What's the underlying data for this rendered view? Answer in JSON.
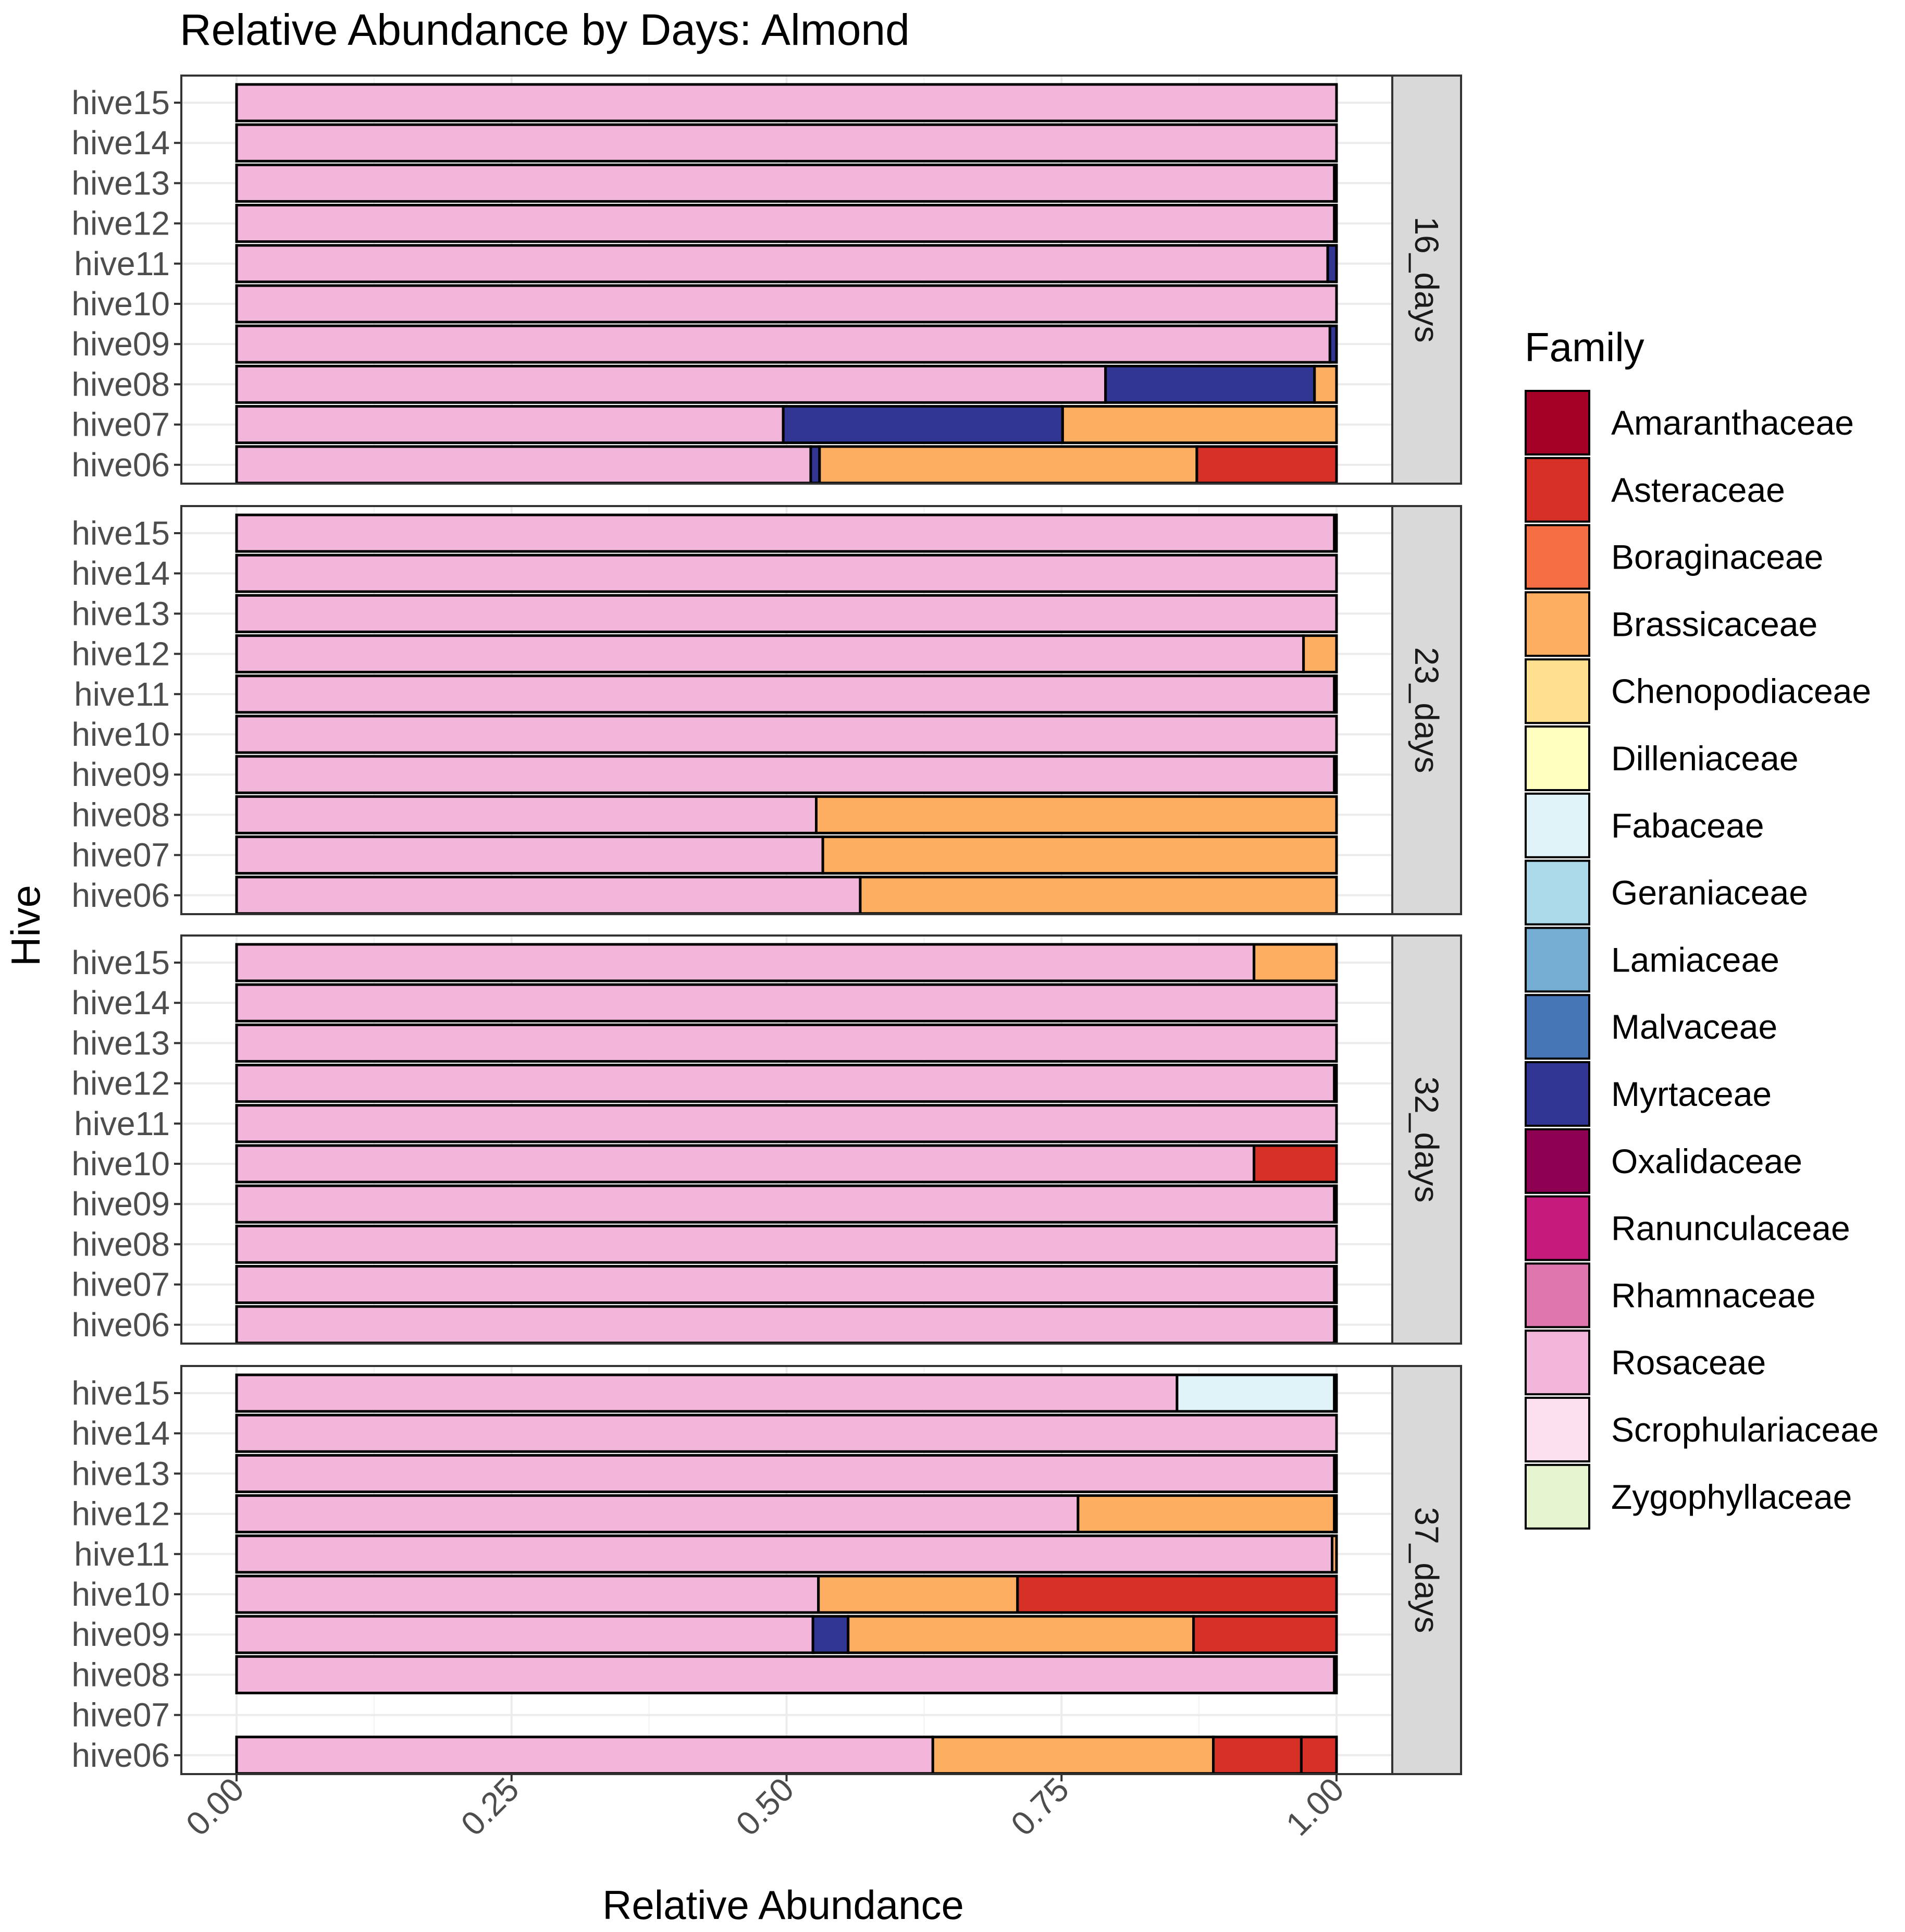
{
  "chart_data": {
    "type": "bar",
    "orientation": "horizontal",
    "stacked": true,
    "title": "Relative Abundance by Days: Almond",
    "xlabel": "Relative Abundance",
    "ylabel": "Hive",
    "xlim": [
      0,
      1
    ],
    "x_ticks": [
      "0.00",
      "0.25",
      "0.50",
      "0.75",
      "1.00"
    ],
    "x_tick_values": [
      0,
      0.25,
      0.5,
      0.75,
      1
    ],
    "hives": [
      "hive15",
      "hive14",
      "hive13",
      "hive12",
      "hive11",
      "hive10",
      "hive09",
      "hive08",
      "hive07",
      "hive06"
    ],
    "legend": {
      "title": "Family",
      "position": "right",
      "entries": [
        {
          "name": "Amaranthaceae",
          "color": "#a50026"
        },
        {
          "name": "Asteraceae",
          "color": "#d73027"
        },
        {
          "name": "Boraginaceae",
          "color": "#f46d43"
        },
        {
          "name": "Brassicaceae",
          "color": "#fdae61"
        },
        {
          "name": "Chenopodiaceae",
          "color": "#fee090"
        },
        {
          "name": "Dilleniaceae",
          "color": "#ffffbf"
        },
        {
          "name": "Fabaceae",
          "color": "#e0f3f8"
        },
        {
          "name": "Geraniaceae",
          "color": "#abd9e9"
        },
        {
          "name": "Lamiaceae",
          "color": "#74add1"
        },
        {
          "name": "Malvaceae",
          "color": "#4575b4"
        },
        {
          "name": "Myrtaceae",
          "color": "#313695"
        },
        {
          "name": "Oxalidaceae",
          "color": "#8e0152"
        },
        {
          "name": "Ranunculaceae",
          "color": "#c51b7d"
        },
        {
          "name": "Rhamnaceae",
          "color": "#de77ae"
        },
        {
          "name": "Rosaceae",
          "color": "#f1b6da"
        },
        {
          "name": "Scrophulariaceae",
          "color": "#fde0ef"
        },
        {
          "name": "Zygophyllaceae",
          "color": "#e6f5d0"
        }
      ]
    },
    "panels": [
      {
        "strip": "16_days",
        "bars": [
          {
            "hive": "hive15",
            "segments": [
              {
                "family": "Rosaceae",
                "value": 1.0
              }
            ]
          },
          {
            "hive": "hive14",
            "segments": [
              {
                "family": "Rosaceae",
                "value": 1.0
              }
            ]
          },
          {
            "hive": "hive13",
            "segments": [
              {
                "family": "Rosaceae",
                "value": 0.998
              },
              {
                "family": "Myrtaceae",
                "value": 0.002
              }
            ]
          },
          {
            "hive": "hive12",
            "segments": [
              {
                "family": "Rosaceae",
                "value": 0.998
              },
              {
                "family": "Myrtaceae",
                "value": 0.002
              }
            ]
          },
          {
            "hive": "hive11",
            "segments": [
              {
                "family": "Rosaceae",
                "value": 0.992
              },
              {
                "family": "Myrtaceae",
                "value": 0.008
              }
            ]
          },
          {
            "hive": "hive10",
            "segments": [
              {
                "family": "Rosaceae",
                "value": 1.0
              }
            ]
          },
          {
            "hive": "hive09",
            "segments": [
              {
                "family": "Rosaceae",
                "value": 0.994
              },
              {
                "family": "Myrtaceae",
                "value": 0.006
              }
            ]
          },
          {
            "hive": "hive08",
            "segments": [
              {
                "family": "Rosaceae",
                "value": 0.79
              },
              {
                "family": "Myrtaceae",
                "value": 0.19
              },
              {
                "family": "Brassicaceae",
                "value": 0.02
              }
            ]
          },
          {
            "hive": "hive07",
            "segments": [
              {
                "family": "Rosaceae",
                "value": 0.497
              },
              {
                "family": "Myrtaceae",
                "value": 0.254
              },
              {
                "family": "Brassicaceae",
                "value": 0.249
              }
            ]
          },
          {
            "hive": "hive06",
            "segments": [
              {
                "family": "Rosaceae",
                "value": 0.522
              },
              {
                "family": "Myrtaceae",
                "value": 0.008
              },
              {
                "family": "Brassicaceae",
                "value": 0.343
              },
              {
                "family": "Asteraceae",
                "value": 0.127
              }
            ]
          }
        ]
      },
      {
        "strip": "23_days",
        "bars": [
          {
            "hive": "hive15",
            "segments": [
              {
                "family": "Rosaceae",
                "value": 0.998
              },
              {
                "family": "Brassicaceae",
                "value": 0.002
              }
            ]
          },
          {
            "hive": "hive14",
            "segments": [
              {
                "family": "Rosaceae",
                "value": 1.0
              }
            ]
          },
          {
            "hive": "hive13",
            "segments": [
              {
                "family": "Rosaceae",
                "value": 1.0
              }
            ]
          },
          {
            "hive": "hive12",
            "segments": [
              {
                "family": "Rosaceae",
                "value": 0.97
              },
              {
                "family": "Brassicaceae",
                "value": 0.03
              }
            ]
          },
          {
            "hive": "hive11",
            "segments": [
              {
                "family": "Rosaceae",
                "value": 0.998
              },
              {
                "family": "Brassicaceae",
                "value": 0.002
              }
            ]
          },
          {
            "hive": "hive10",
            "segments": [
              {
                "family": "Rosaceae",
                "value": 1.0
              }
            ]
          },
          {
            "hive": "hive09",
            "segments": [
              {
                "family": "Rosaceae",
                "value": 0.998
              },
              {
                "family": "Brassicaceae",
                "value": 0.002
              }
            ]
          },
          {
            "hive": "hive08",
            "segments": [
              {
                "family": "Rosaceae",
                "value": 0.527
              },
              {
                "family": "Brassicaceae",
                "value": 0.473
              }
            ]
          },
          {
            "hive": "hive07",
            "segments": [
              {
                "family": "Rosaceae",
                "value": 0.533
              },
              {
                "family": "Brassicaceae",
                "value": 0.467
              }
            ]
          },
          {
            "hive": "hive06",
            "segments": [
              {
                "family": "Rosaceae",
                "value": 0.567
              },
              {
                "family": "Brassicaceae",
                "value": 0.433
              }
            ]
          }
        ]
      },
      {
        "strip": "32_days",
        "bars": [
          {
            "hive": "hive15",
            "segments": [
              {
                "family": "Rosaceae",
                "value": 0.925
              },
              {
                "family": "Brassicaceae",
                "value": 0.075
              }
            ]
          },
          {
            "hive": "hive14",
            "segments": [
              {
                "family": "Rosaceae",
                "value": 1.0
              }
            ]
          },
          {
            "hive": "hive13",
            "segments": [
              {
                "family": "Rosaceae",
                "value": 1.0
              }
            ]
          },
          {
            "hive": "hive12",
            "segments": [
              {
                "family": "Rosaceae",
                "value": 0.998
              },
              {
                "family": "Brassicaceae",
                "value": 0.002
              }
            ]
          },
          {
            "hive": "hive11",
            "segments": [
              {
                "family": "Rosaceae",
                "value": 1.0
              }
            ]
          },
          {
            "hive": "hive10",
            "segments": [
              {
                "family": "Rosaceae",
                "value": 0.925
              },
              {
                "family": "Asteraceae",
                "value": 0.075
              }
            ]
          },
          {
            "hive": "hive09",
            "segments": [
              {
                "family": "Rosaceae",
                "value": 0.998
              },
              {
                "family": "Brassicaceae",
                "value": 0.002
              }
            ]
          },
          {
            "hive": "hive08",
            "segments": [
              {
                "family": "Rosaceae",
                "value": 1.0
              }
            ]
          },
          {
            "hive": "hive07",
            "segments": [
              {
                "family": "Rosaceae",
                "value": 0.998
              },
              {
                "family": "Brassicaceae",
                "value": 0.002
              }
            ]
          },
          {
            "hive": "hive06",
            "segments": [
              {
                "family": "Rosaceae",
                "value": 0.998
              },
              {
                "family": "Brassicaceae",
                "value": 0.002
              }
            ]
          }
        ]
      },
      {
        "strip": "37_days",
        "bars": [
          {
            "hive": "hive15",
            "segments": [
              {
                "family": "Rosaceae",
                "value": 0.855
              },
              {
                "family": "Fabaceae",
                "value": 0.143
              },
              {
                "family": "Brassicaceae",
                "value": 0.002
              }
            ]
          },
          {
            "hive": "hive14",
            "segments": [
              {
                "family": "Rosaceae",
                "value": 1.0
              }
            ]
          },
          {
            "hive": "hive13",
            "segments": [
              {
                "family": "Rosaceae",
                "value": 0.998
              },
              {
                "family": "Brassicaceae",
                "value": 0.002
              }
            ]
          },
          {
            "hive": "hive12",
            "segments": [
              {
                "family": "Rosaceae",
                "value": 0.765
              },
              {
                "family": "Brassicaceae",
                "value": 0.233
              },
              {
                "family": "Asteraceae",
                "value": 0.002
              }
            ]
          },
          {
            "hive": "hive11",
            "segments": [
              {
                "family": "Rosaceae",
                "value": 0.996
              },
              {
                "family": "Brassicaceae",
                "value": 0.004
              }
            ]
          },
          {
            "hive": "hive10",
            "segments": [
              {
                "family": "Rosaceae",
                "value": 0.529
              },
              {
                "family": "Brassicaceae",
                "value": 0.181
              },
              {
                "family": "Asteraceae",
                "value": 0.29
              }
            ]
          },
          {
            "hive": "hive09",
            "segments": [
              {
                "family": "Rosaceae",
                "value": 0.524
              },
              {
                "family": "Myrtaceae",
                "value": 0.032
              },
              {
                "family": "Brassicaceae",
                "value": 0.314
              },
              {
                "family": "Asteraceae",
                "value": 0.13
              }
            ]
          },
          {
            "hive": "hive08",
            "segments": [
              {
                "family": "Rosaceae",
                "value": 0.998
              },
              {
                "family": "Brassicaceae",
                "value": 0.002
              }
            ]
          },
          {
            "hive": "hive07",
            "segments": []
          },
          {
            "hive": "hive06",
            "segments": [
              {
                "family": "Rosaceae",
                "value": 0.633
              },
              {
                "family": "Brassicaceae",
                "value": 0.255
              },
              {
                "family": "Asteraceae",
                "value": 0.08
              },
              {
                "family": "Asteraceae",
                "value": 0.032
              }
            ]
          }
        ]
      }
    ]
  }
}
